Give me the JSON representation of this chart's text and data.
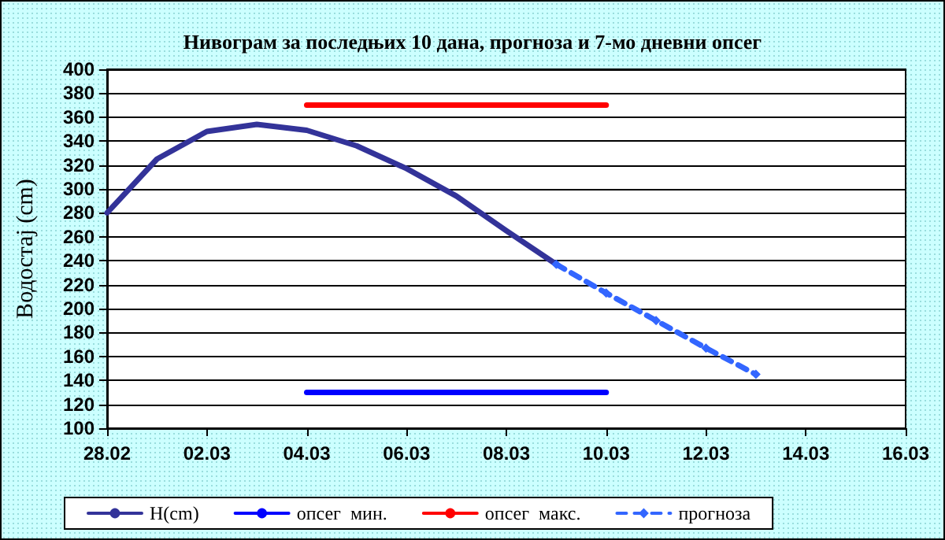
{
  "chart_data": {
    "type": "line",
    "title": "Нивограм за последњих 10 дана, прогноза и 7-мо дневни опсег",
    "ylabel": "Водостај (cm)",
    "xlim": [
      "--02-28",
      "--03-16"
    ],
    "xticks": [
      {
        "value": "--02-28",
        "label": "28.02"
      },
      {
        "value": "--03-02",
        "label": "02.03"
      },
      {
        "value": "--03-04",
        "label": "04.03"
      },
      {
        "value": "--03-06",
        "label": "06.03"
      },
      {
        "value": "--03-08",
        "label": "08.03"
      },
      {
        "value": "--03-10",
        "label": "10.03"
      },
      {
        "value": "--03-12",
        "label": "12.03"
      },
      {
        "value": "--03-14",
        "label": "14.03"
      },
      {
        "value": "--03-16",
        "label": "16.03"
      }
    ],
    "ylim": [
      100,
      400
    ],
    "yticks": [
      100,
      120,
      140,
      160,
      180,
      200,
      220,
      240,
      260,
      280,
      300,
      320,
      340,
      360,
      380,
      400
    ],
    "grid": "y",
    "legend": "bottom",
    "series": [
      {
        "name": "H(cm)",
        "color": "#333399",
        "line_style": "solid",
        "marker": "none",
        "x": [
          "--02-28",
          "--03-01",
          "--03-02",
          "--03-03",
          "--03-04",
          "--03-05",
          "--03-06",
          "--03-07",
          "--03-08",
          "--03-09"
        ],
        "values": [
          280,
          325,
          348,
          354,
          349,
          336,
          317,
          294,
          265,
          237
        ]
      },
      {
        "name": "опсег  мин.",
        "color": "#0000ff",
        "line_style": "solid",
        "marker": "none",
        "x": [
          "--03-04",
          "--03-10"
        ],
        "values": [
          130,
          130
        ]
      },
      {
        "name": "опсег  макс.",
        "color": "#ff0000",
        "line_style": "solid",
        "marker": "none",
        "x": [
          "--03-04",
          "--03-10"
        ],
        "values": [
          370,
          370
        ]
      },
      {
        "name": "прогноза",
        "color": "#3366ff",
        "line_style": "dashed",
        "marker": "diamond",
        "x": [
          "--03-09",
          "--03-10",
          "--03-11",
          "--03-12",
          "--03-13"
        ],
        "values": [
          237,
          213,
          190,
          167,
          145
        ]
      }
    ]
  }
}
